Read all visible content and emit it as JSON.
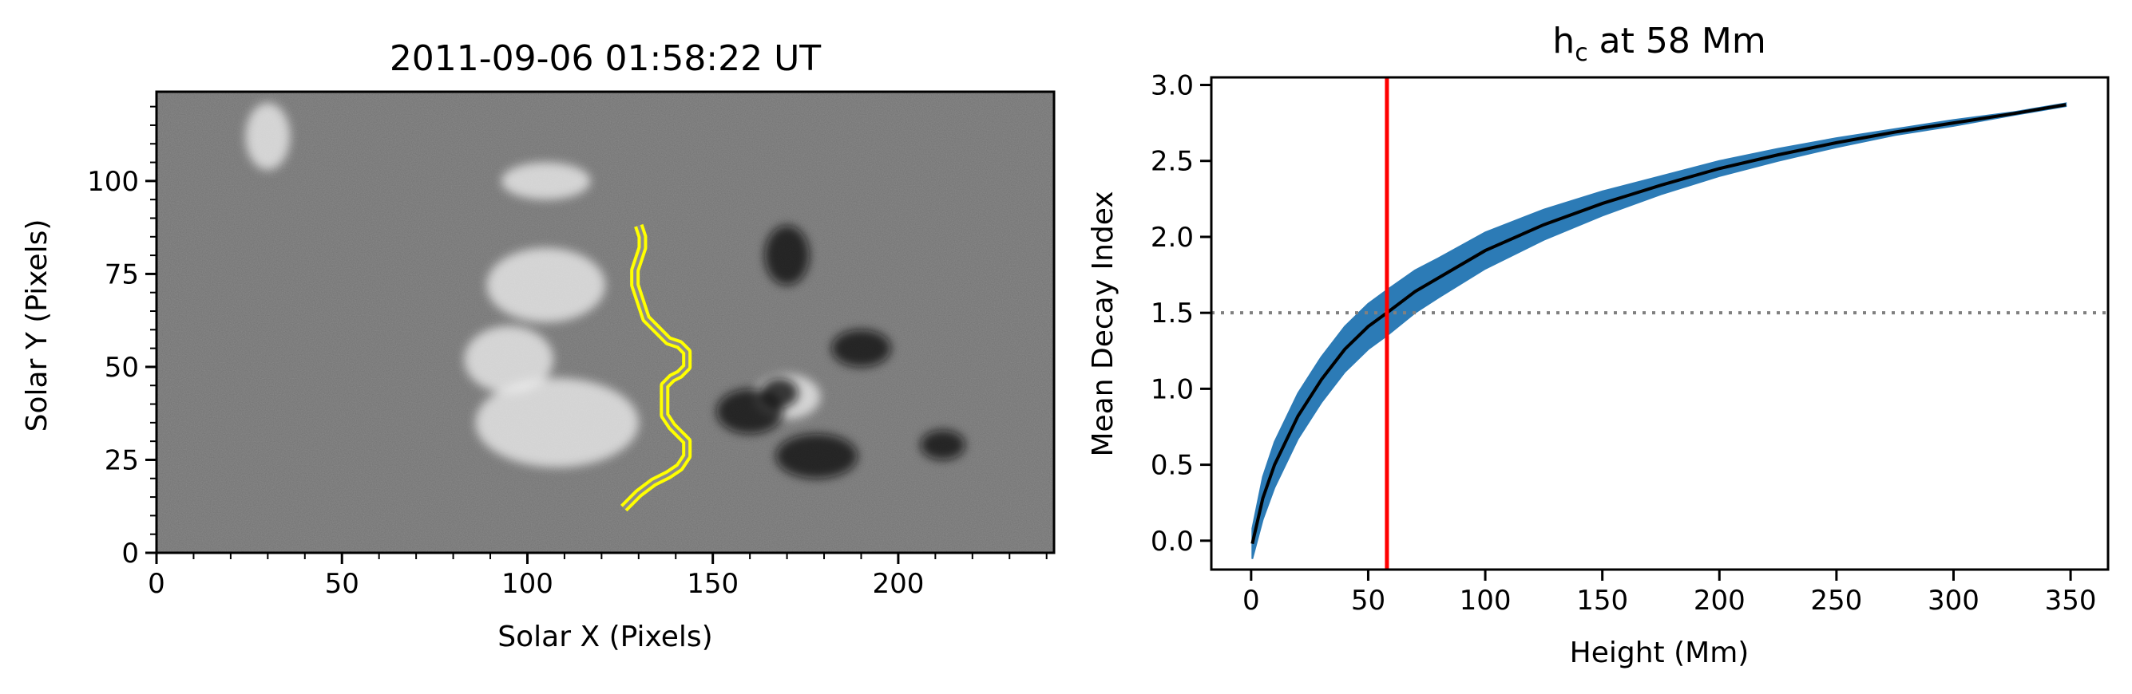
{
  "chart_data": [
    {
      "type": "heatmap",
      "title": "2011-09-06 01:58:22 UT",
      "xlabel": "Solar X (Pixels)",
      "ylabel": "Solar Y (Pixels)",
      "xlim": [
        0,
        242
      ],
      "ylim": [
        0,
        124
      ],
      "xticks": [
        0,
        50,
        100,
        150,
        200
      ],
      "yticks": [
        0,
        25,
        50,
        75,
        100
      ],
      "colormap": "gray",
      "contour_color": "#ffff00",
      "contour": [
        [
          126,
          12
        ],
        [
          130,
          16
        ],
        [
          134,
          19
        ],
        [
          138,
          21
        ],
        [
          141,
          23
        ],
        [
          143,
          26
        ],
        [
          143,
          30
        ],
        [
          141,
          32
        ],
        [
          139,
          34
        ],
        [
          137,
          37
        ],
        [
          137,
          41
        ],
        [
          137,
          45
        ],
        [
          139,
          47
        ],
        [
          141,
          48
        ],
        [
          143,
          50
        ],
        [
          143,
          54
        ],
        [
          141,
          56
        ],
        [
          138,
          57
        ],
        [
          136,
          59
        ],
        [
          134,
          61
        ],
        [
          132,
          63
        ],
        [
          131,
          66
        ],
        [
          130,
          69
        ],
        [
          129,
          72
        ],
        [
          129,
          76
        ],
        [
          130,
          79
        ],
        [
          131,
          82
        ],
        [
          131,
          85
        ],
        [
          130,
          88
        ]
      ],
      "positive_regions": [
        {
          "x": 105,
          "y": 72,
          "rx": 16,
          "ry": 10
        },
        {
          "x": 108,
          "y": 35,
          "rx": 22,
          "ry": 12
        },
        {
          "x": 95,
          "y": 52,
          "rx": 12,
          "ry": 9
        },
        {
          "x": 170,
          "y": 42,
          "rx": 9,
          "ry": 6
        },
        {
          "x": 30,
          "y": 112,
          "rx": 6,
          "ry": 9
        },
        {
          "x": 105,
          "y": 100,
          "rx": 12,
          "ry": 5
        }
      ],
      "negative_regions": [
        {
          "x": 178,
          "y": 26,
          "rx": 11,
          "ry": 6
        },
        {
          "x": 160,
          "y": 38,
          "rx": 9,
          "ry": 6
        },
        {
          "x": 168,
          "y": 43,
          "rx": 5,
          "ry": 4
        },
        {
          "x": 212,
          "y": 29,
          "rx": 6,
          "ry": 4
        },
        {
          "x": 190,
          "y": 55,
          "rx": 8,
          "ry": 5
        },
        {
          "x": 170,
          "y": 80,
          "rx": 6,
          "ry": 8
        }
      ]
    },
    {
      "type": "line",
      "title_prefix": "h",
      "title_subscript": "c",
      "title_suffix": " at 58 Mm",
      "xlabel": "Height (Mm)",
      "ylabel": "Mean Decay Index",
      "xlim": [
        -17,
        366
      ],
      "ylim": [
        -0.19,
        3.05
      ],
      "xticks": [
        0,
        50,
        100,
        150,
        200,
        250,
        300,
        350
      ],
      "yticks": [
        "0.0",
        "0.5",
        "1.0",
        "1.5",
        "2.0",
        "2.5",
        "3.0"
      ],
      "series": [
        {
          "values_x": [
            0.5,
            5,
            10,
            20,
            30,
            40,
            50,
            58,
            70,
            80,
            100,
            125,
            150,
            175,
            200,
            225,
            250,
            275,
            300,
            325,
            348
          ],
          "values_y": [
            -0.02,
            0.28,
            0.5,
            0.82,
            1.06,
            1.26,
            1.41,
            1.5,
            1.64,
            1.73,
            1.91,
            2.08,
            2.22,
            2.34,
            2.45,
            2.54,
            2.62,
            2.69,
            2.75,
            2.81,
            2.87
          ],
          "uncertainty": [
            0.1,
            0.14,
            0.15,
            0.15,
            0.15,
            0.15,
            0.15,
            0.15,
            0.14,
            0.13,
            0.12,
            0.1,
            0.08,
            0.06,
            0.05,
            0.04,
            0.03,
            0.02,
            0.02,
            0.01,
            0.01
          ]
        }
      ],
      "line_color": "#000000",
      "band_color": "#2c7bb6",
      "vline_x": 58,
      "vline_color": "#ff0000",
      "hline_y": 1.5,
      "hline_color": "#808080"
    }
  ]
}
